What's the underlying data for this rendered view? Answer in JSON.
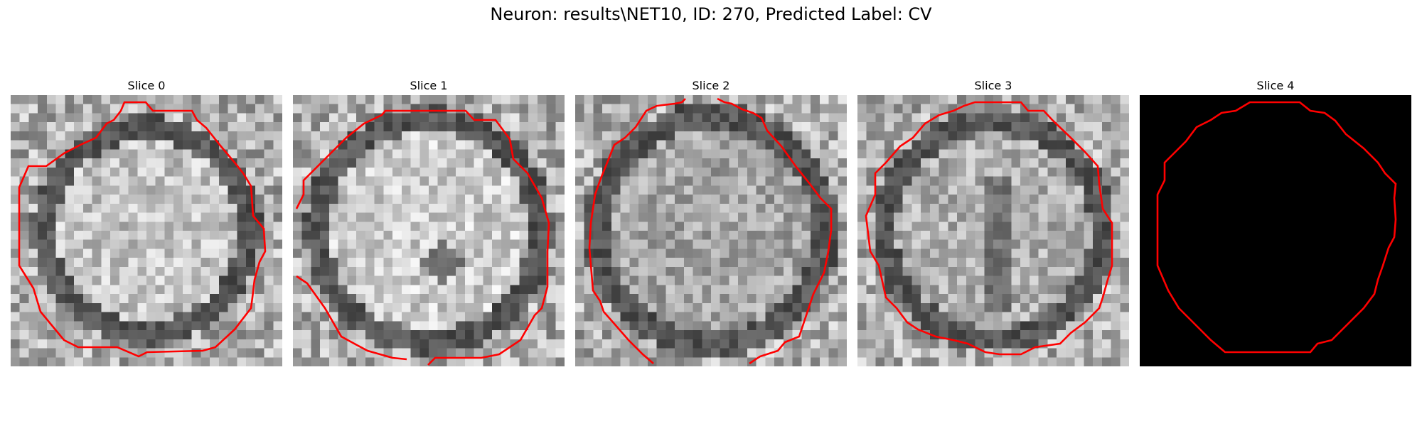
{
  "figure": {
    "title": "Neuron: results\\NET10, ID: 270, Predicted Label: CV"
  },
  "contour_color": "#ff0000",
  "slices": [
    {
      "label": "Slice 0"
    },
    {
      "label": "Slice 1"
    },
    {
      "label": "Slice 2"
    },
    {
      "label": "Slice 3"
    },
    {
      "label": "Slice 4"
    }
  ]
}
